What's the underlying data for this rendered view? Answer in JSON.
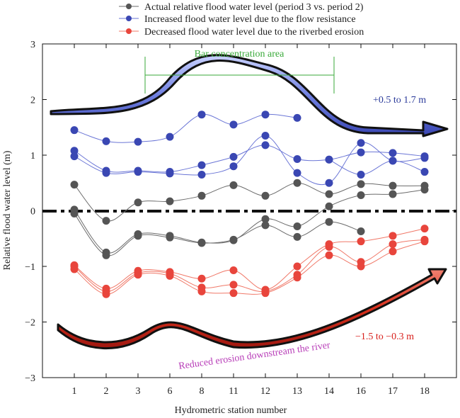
{
  "colors": {
    "actual": "#555555",
    "increased": "#3a47b3",
    "decreased": "#e8453c",
    "zero_line": "#111111",
    "bar_area": "#3aaa3a",
    "reduced_erosion": "#b83db8",
    "text_blue": "#2a3a9a",
    "text_red": "#d8201c"
  },
  "chart_data": {
    "type": "line",
    "xlabel": "Hydrometric station number",
    "ylabel": "Relative flood water level (m)",
    "categories": [
      "1",
      "2",
      "3",
      "6",
      "8",
      "11",
      "12",
      "13",
      "14",
      "16",
      "17",
      "18"
    ],
    "ylim": [
      -3,
      3
    ],
    "yticks": [
      "−3",
      "−2",
      "−1",
      "0",
      "1",
      "2",
      "3"
    ],
    "legend": {
      "placement": "top-center",
      "entries": [
        {
          "label": "Actual relative flood water level (period 3 vs. period 2)",
          "color": "#555555"
        },
        {
          "label": "Increased flood water level due to the flow resistance",
          "color": "#3a47b3"
        },
        {
          "label": "Decreased flood water level due to the riverbed erosion",
          "color": "#e8453c"
        }
      ]
    },
    "series": [
      {
        "group": "actual",
        "values": [
          0.47,
          -0.18,
          0.15,
          0.17,
          0.27,
          0.46,
          0.27,
          0.5,
          0.3,
          0.48,
          0.45,
          0.45
        ]
      },
      {
        "group": "actual",
        "values": [
          0.02,
          -0.75,
          -0.42,
          -0.45,
          -0.57,
          -0.53,
          -0.15,
          -0.28,
          0.08,
          0.28,
          0.3,
          0.38
        ]
      },
      {
        "group": "actual",
        "values": [
          -0.05,
          -0.8,
          -0.45,
          -0.48,
          -0.58,
          -0.52,
          -0.26,
          -0.47,
          -0.2,
          -0.37,
          null,
          null
        ]
      },
      {
        "group": "increased",
        "values": [
          1.45,
          1.25,
          1.24,
          1.33,
          1.73,
          1.55,
          1.73,
          1.67,
          null,
          null,
          null,
          null
        ]
      },
      {
        "group": "increased",
        "values": [
          1.08,
          0.72,
          0.72,
          0.7,
          0.82,
          0.97,
          1.18,
          0.93,
          0.92,
          1.05,
          1.04,
          0.98
        ]
      },
      {
        "group": "increased",
        "values": [
          0.98,
          0.68,
          0.7,
          0.67,
          0.65,
          0.8,
          1.35,
          0.68,
          0.5,
          1.22,
          0.9,
          0.95
        ]
      },
      {
        "group": "increased",
        "values": [
          null,
          null,
          null,
          null,
          null,
          null,
          null,
          null,
          0.92,
          0.65,
          0.9,
          0.7
        ]
      },
      {
        "group": "decreased",
        "values": [
          -0.98,
          -1.4,
          -1.08,
          -1.1,
          -1.22,
          -1.07,
          -1.42,
          -1.0,
          -0.6,
          -0.55,
          -0.45,
          -0.32
        ]
      },
      {
        "group": "decreased",
        "values": [
          -1.0,
          -1.45,
          -1.12,
          -1.13,
          -1.38,
          -1.33,
          -1.45,
          -1.15,
          -0.65,
          -0.92,
          -0.6,
          -0.52
        ]
      },
      {
        "group": "decreased",
        "values": [
          -1.05,
          -1.5,
          -1.15,
          -1.17,
          -1.45,
          -1.48,
          -1.48,
          -1.2,
          -0.8,
          -1.0,
          -0.73,
          -0.55
        ]
      }
    ],
    "annotations": {
      "bar_area": "Bar concentration area",
      "increase_range": "+0.5 to 1.7 m",
      "decrease_range": "−1.5 to −0.3 m",
      "reduced_erosion": "Reduced erosion downstream the river"
    }
  }
}
